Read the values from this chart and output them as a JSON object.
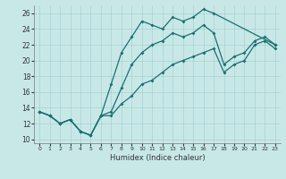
{
  "xlabel": "Humidex (Indice chaleur)",
  "bg_color": "#c8e8e8",
  "line_color": "#1a7070",
  "xlim": [
    -0.5,
    23.5
  ],
  "ylim": [
    9.5,
    27.0
  ],
  "xticks": [
    0,
    1,
    2,
    3,
    4,
    5,
    6,
    7,
    8,
    9,
    10,
    11,
    12,
    13,
    14,
    15,
    16,
    17,
    18,
    19,
    20,
    21,
    22,
    23
  ],
  "yticks": [
    10,
    12,
    14,
    16,
    18,
    20,
    22,
    24,
    26
  ],
  "line_upper_x": [
    0,
    1,
    2,
    3,
    4,
    5,
    6,
    7,
    8,
    9,
    10,
    11,
    12,
    13,
    14,
    15,
    16,
    17,
    23
  ],
  "line_upper_y": [
    13.5,
    13.0,
    12.0,
    12.5,
    11.0,
    10.5,
    13.0,
    17.0,
    21.0,
    23.0,
    25.0,
    24.5,
    24.0,
    25.5,
    25.0,
    25.5,
    26.5,
    26.0,
    22.0
  ],
  "line_lower_x": [
    0,
    1,
    2,
    3,
    4,
    5,
    6,
    7,
    8,
    9,
    10,
    11,
    12,
    13,
    14,
    15,
    16,
    17,
    18,
    19,
    20,
    21,
    22,
    23
  ],
  "line_lower_y": [
    13.5,
    13.0,
    12.0,
    12.5,
    11.0,
    10.5,
    13.0,
    13.0,
    14.5,
    15.5,
    17.0,
    17.5,
    18.5,
    19.5,
    20.0,
    20.5,
    21.0,
    21.5,
    18.5,
    19.5,
    20.0,
    22.0,
    22.5,
    21.5
  ],
  "line_mid_x": [
    0,
    1,
    2,
    3,
    4,
    5,
    6,
    7,
    8,
    9,
    10,
    11,
    12,
    13,
    14,
    15,
    16,
    17,
    18,
    19,
    20,
    21,
    22,
    23
  ],
  "line_mid_y": [
    13.5,
    13.0,
    12.0,
    12.5,
    11.0,
    10.5,
    13.0,
    13.5,
    16.5,
    19.5,
    21.0,
    22.0,
    22.5,
    23.5,
    23.0,
    23.5,
    24.5,
    23.5,
    19.5,
    20.5,
    21.0,
    22.5,
    23.0,
    22.0
  ]
}
